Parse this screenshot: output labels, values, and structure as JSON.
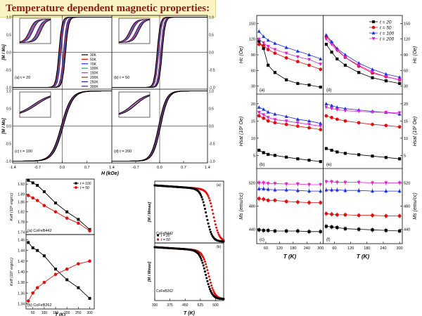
{
  "slide": {
    "title": "Temperature dependent magnetic properties:"
  },
  "chart_data": [
    {
      "id": "loops",
      "type": "line",
      "panels": [
        {
          "label": "(a) t = 20",
          "hc": 0.095,
          "k": 0.085
        },
        {
          "label": "(b) t = 50",
          "hc": 0.075,
          "k": 0.09
        },
        {
          "label": "(c) t = 100",
          "hc": 0.03,
          "k": 0.28
        },
        {
          "label": "(d) t = 200",
          "hc": 0.03,
          "k": 0.22
        }
      ],
      "legend": [
        "30K",
        "50K",
        "70K",
        "100K",
        "150K",
        "200K",
        "250K",
        "300K"
      ],
      "xlabel": "H (kOe)",
      "ylabel": "[M / Ms]",
      "xticks": [
        "-1.4",
        "-0.7",
        "0.0",
        "0.7",
        "1.4"
      ],
      "yticks": [
        "1.0",
        "0.5",
        "0.0",
        "-0.5",
        "-1.0"
      ],
      "xlim": [
        -1.4,
        1.4
      ],
      "ylim": [
        -1.05,
        1.05
      ]
    },
    {
      "id": "ku",
      "type": "line",
      "x": [
        30,
        50,
        70,
        100,
        150,
        200,
        250,
        300
      ],
      "xlabel": "T (K)",
      "xticks": [
        "50",
        "100",
        "150",
        "200",
        "250",
        "300"
      ],
      "panels": [
        {
          "label": "(a) CoFeB442",
          "ylabel": "Keff (10⁶ erg/cc)",
          "yticks": [
            "1.93",
            "1.89",
            "1.86",
            "1.82",
            "1.78",
            "1.74"
          ],
          "ylim": [
            1.73,
            1.95
          ],
          "series": [
            {
              "name": "t = 100",
              "color": "#000000",
              "marker": "square",
              "values": [
                1.945,
                1.935,
                1.925,
                1.9,
                1.855,
                1.82,
                1.79,
                1.75
              ]
            },
            {
              "name": "t = 50",
              "color": "#e01010",
              "marker": "circle",
              "values": [
                1.885,
                1.875,
                1.865,
                1.845,
                1.82,
                1.795,
                1.775,
                1.745
              ]
            }
          ]
        },
        {
          "label": "(b) CoFeB262",
          "ylabel": "Keff (10⁶ erg/cc)",
          "yticks": [
            "1.46",
            "1.44",
            "1.42",
            "1.40",
            "1.38",
            "1.36",
            "1.34"
          ],
          "ylim": [
            1.33,
            1.47
          ],
          "series": [
            {
              "name": "t = 100",
              "color": "#000000",
              "marker": "square",
              "values": [
                1.455,
                1.445,
                1.44,
                1.43,
                1.405,
                1.385,
                1.37,
                1.35
              ]
            },
            {
              "name": "t = 50",
              "color": "#e01010",
              "marker": "circle",
              "values": [
                1.345,
                1.36,
                1.37,
                1.38,
                1.395,
                1.405,
                1.415,
                1.42
              ]
            }
          ]
        }
      ]
    },
    {
      "id": "mt",
      "type": "line",
      "xlabel": "T (K)",
      "xticks": [
        "300",
        "375",
        "450",
        "525",
        "600"
      ],
      "xlim": [
        300,
        640
      ],
      "ylabel": "[M / Mmax]",
      "legend": [
        "t = 20",
        "t = 50"
      ],
      "panels": [
        {
          "label": "(a)",
          "sample": "CoFeB442",
          "tc": [
            555,
            590
          ],
          "w": [
            14,
            14
          ]
        },
        {
          "label": "(b)",
          "sample": "CoFeB262",
          "tc": [
            552,
            566
          ],
          "w": [
            15,
            15
          ]
        }
      ]
    },
    {
      "id": "hc_hsat_ms",
      "type": "line",
      "x": [
        30,
        50,
        70,
        100,
        150,
        200,
        250,
        300
      ],
      "xlabel": "T (K)",
      "xticks": [
        "60",
        "120",
        "180",
        "240",
        "300"
      ],
      "legend": [
        {
          "name": "t = 20",
          "color": "#000000",
          "marker": "square"
        },
        {
          "name": "t = 50",
          "color": "#e01010",
          "marker": "circle"
        },
        {
          "name": "t = 100",
          "color": "#1c2ee8",
          "marker": "triangle"
        },
        {
          "name": "t = 200",
          "color": "#e020d0",
          "marker": "triangle-down"
        }
      ],
      "rows": [
        {
          "ylabel": "Hc (Oe)",
          "ylim": [
            20,
            160
          ],
          "yticks": [
            "150",
            "120",
            "90",
            "60",
            "30"
          ],
          "panels": [
            {
              "label": "(a)",
              "values": [
                [
                  116,
                  102,
                  70,
                  56,
                  42,
                  35,
                  32,
                  28
                ],
                [
                  110,
                  108,
                  100,
                  93,
                  84,
                  77,
                  70,
                  62
                ],
                [
                  135,
                  125,
                  118,
                  112,
                  104,
                  97,
                  90,
                  82
                ],
                [
                  120,
                  113,
                  106,
                  100,
                  93,
                  86,
                  81,
                  72
                ]
              ]
            },
            {
              "label": "(d)",
              "values": [
                [
                  110,
                  95,
                  82,
                  70,
                  56,
                  46,
                  40,
                  35
                ],
                [
                  125,
                  113,
                  100,
                  85,
                  68,
                  55,
                  48,
                  42
                ],
                [
                  128,
                  115,
                  102,
                  90,
                  74,
                  62,
                  53,
                  47
                ],
                [
                  120,
                  110,
                  98,
                  85,
                  70,
                  57,
                  48,
                  42
                ]
              ]
            }
          ]
        },
        {
          "ylabel": "Hsat (10² Oe)",
          "ylim": [
            2,
            22
          ],
          "yticks": [
            "20",
            "15",
            "10",
            "5"
          ],
          "panels": [
            {
              "label": "(b)",
              "values": [
                [
                  6.5,
                  5.8,
                  5.3,
                  5.0,
                  4.5,
                  4.0,
                  3.6,
                  3.2
                ],
                [
                  16.5,
                  15.8,
                  15.0,
                  14.5,
                  14.0,
                  13.5,
                  13.0,
                  12.5
                ],
                [
                  19.0,
                  18.4,
                  17.6,
                  17.0,
                  16.3,
                  15.5,
                  15.0,
                  14.3
                ],
                [
                  17.5,
                  16.8,
                  16.0,
                  15.4,
                  15.0,
                  14.5,
                  14.0,
                  13.5
                ]
              ]
            },
            {
              "label": "(e)",
              "values": [
                [
                  7.0,
                  6.5,
                  6.0,
                  5.6,
                  5.2,
                  4.8,
                  4.4,
                  4.0
                ],
                [
                  16.5,
                  16.0,
                  15.5,
                  15.0,
                  14.5,
                  14.0,
                  13.7,
                  13.3
                ],
                [
                  20.0,
                  19.5,
                  19.0,
                  18.6,
                  18.2,
                  17.8,
                  17.5,
                  17.0
                ],
                [
                  19.0,
                  18.6,
                  18.3,
                  18.0,
                  17.8,
                  17.6,
                  17.5,
                  17.4
                ]
              ]
            }
          ]
        },
        {
          "ylabel": "Ms (emu/cc)",
          "ylim": [
            420,
            540
          ],
          "yticks": [
            "520",
            "480",
            "440"
          ],
          "panels": [
            {
              "label": "(c)",
              "values": [
                [
                  439,
                  438,
                  438,
                  437,
                  437,
                  437,
                  436,
                  436
                ],
                [
                  493,
                  492,
                  490,
                  490,
                  488,
                  487,
                  486,
                  486
                ],
                [
                  510,
                  510,
                  509,
                  508,
                  508,
                  507,
                  506,
                  506
                ],
                [
                  520,
                  520,
                  519,
                  519,
                  518,
                  518,
                  517,
                  517
                ]
              ]
            },
            {
              "label": "(f)",
              "values": [
                [
                  445,
                  444,
                  443,
                  441,
                  440,
                  439,
                  438,
                  437
                ],
                [
                  467,
                  466,
                  465,
                  465,
                  464,
                  464,
                  463,
                  463
                ],
                [
                  508,
                  508,
                  508,
                  507,
                  507,
                  506,
                  506,
                  506
                ],
                [
                  522,
                  522,
                  521,
                  521,
                  521,
                  520,
                  520,
                  520
                ]
              ]
            }
          ]
        }
      ]
    }
  ]
}
